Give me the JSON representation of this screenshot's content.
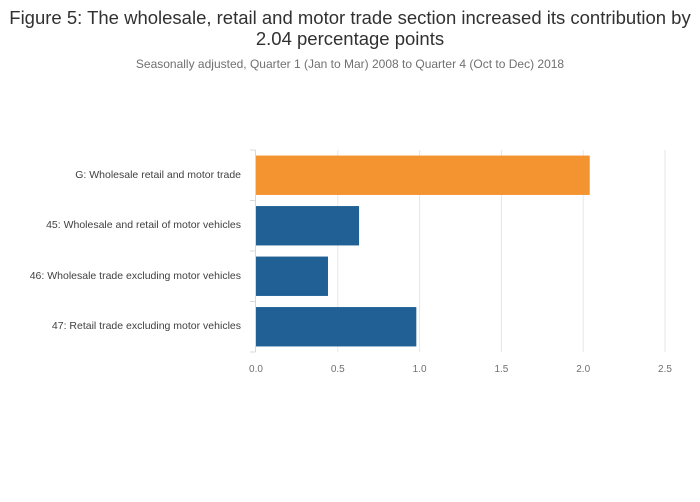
{
  "chart_data": {
    "type": "bar",
    "orientation": "horizontal",
    "title": "Figure 5: The wholesale, retail and motor trade section increased its contribution by 2.04 percentage points",
    "subtitle": "Seasonally adjusted, Quarter 1 (Jan to Mar) 2008 to Quarter 4 (Oct to Dec) 2018",
    "categories": [
      "G: Wholesale retail and motor trade",
      "45: Wholesale and retail of motor vehicles",
      "46: Wholesale trade excluding motor vehicles",
      "47: Retail trade excluding motor vehicles"
    ],
    "values": [
      2.04,
      0.63,
      0.44,
      0.98
    ],
    "colors": [
      "#f39431",
      "#206095",
      "#206095",
      "#206095"
    ],
    "xlim": [
      0,
      2.5
    ],
    "xticks": [
      "0.0",
      "0.5",
      "1.0",
      "1.5",
      "2.0",
      "2.5"
    ],
    "xlabel": "",
    "ylabel": "",
    "grid": true,
    "legend": "none"
  }
}
